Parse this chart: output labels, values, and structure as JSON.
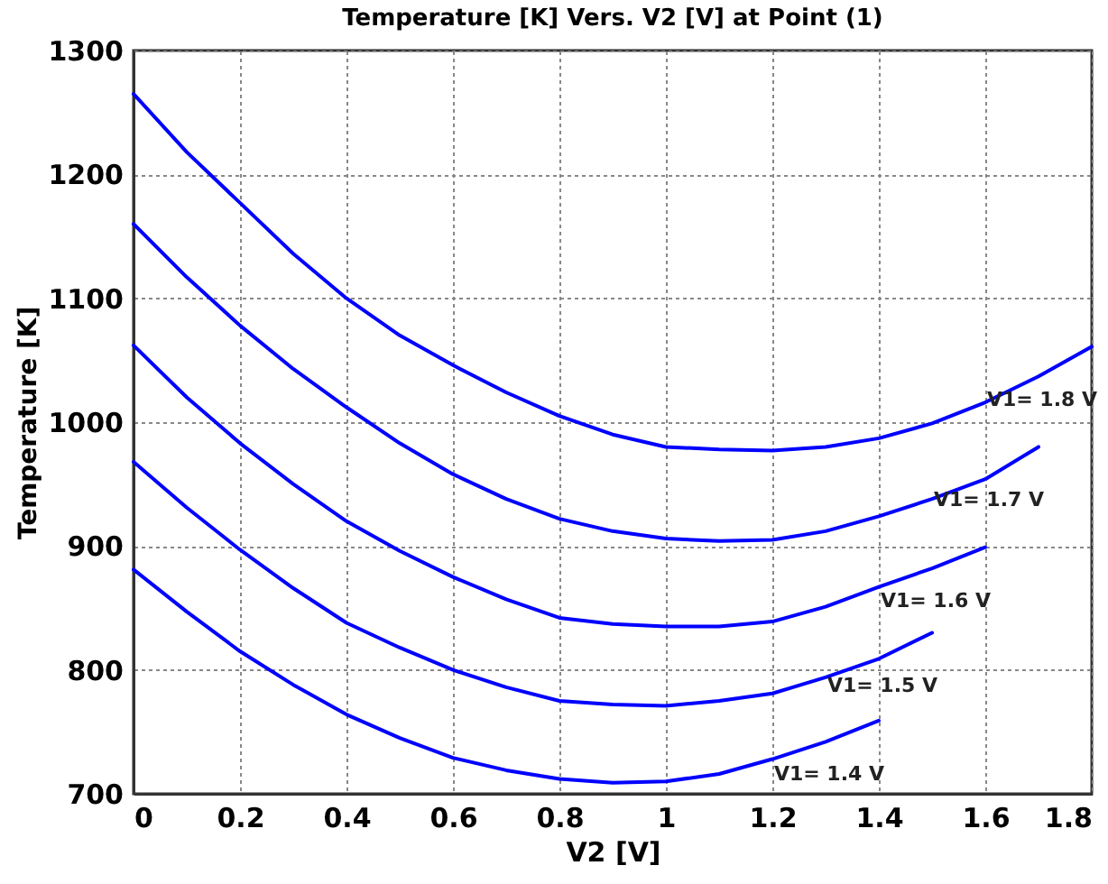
{
  "chart_data": {
    "type": "line",
    "title": "Temperature [K] Vers. V2  [V] at Point (1)",
    "xlabel": "V2 [V]",
    "ylabel": "Temperature [K]",
    "xlim": [
      0,
      1.8
    ],
    "xticks": [
      0,
      0.2,
      0.4,
      0.6,
      0.8,
      1,
      1.2,
      1.4,
      1.6,
      1.8
    ],
    "ylim": [
      700,
      1300
    ],
    "yticks": [
      700,
      800,
      900,
      1000,
      1100,
      1200,
      1300
    ],
    "grid": true,
    "line_style": "solid",
    "series": [
      {
        "name": "V1= 1.8 V",
        "color": "#0000ff",
        "x": [
          0,
          0.1,
          0.2,
          0.3,
          0.4,
          0.5,
          0.6,
          0.7,
          0.8,
          0.9,
          1,
          1.1,
          1.2,
          1.3,
          1.4,
          1.5,
          1.6,
          1.7,
          1.8
        ],
        "values": [
          1265,
          1218,
          1177,
          1136,
          1100,
          1070,
          1046,
          1024,
          1005,
          990,
          980,
          978,
          977,
          980,
          987,
          999,
          1016,
          1037,
          1061
        ]
      },
      {
        "name": "V1= 1.7 V",
        "color": "#0000ff",
        "x": [
          0,
          0.1,
          0.2,
          0.3,
          0.4,
          0.5,
          0.6,
          0.7,
          0.8,
          0.9,
          1,
          1.1,
          1.2,
          1.3,
          1.4,
          1.5,
          1.6,
          1.7
        ],
        "values": [
          1160,
          1117,
          1078,
          1043,
          1012,
          983,
          958,
          938,
          922,
          912,
          906,
          904,
          905,
          912,
          924,
          938,
          954,
          980
        ]
      },
      {
        "name": "V1= 1.6 V",
        "color": "#0000ff",
        "x": [
          0,
          0.1,
          0.2,
          0.3,
          0.4,
          0.5,
          0.6,
          0.7,
          0.8,
          0.9,
          1,
          1.1,
          1.2,
          1.3,
          1.4,
          1.5,
          1.6
        ],
        "values": [
          1062,
          1020,
          983,
          950,
          920,
          896,
          875,
          857,
          842,
          837,
          835,
          835,
          839,
          851,
          867,
          882,
          899
        ]
      },
      {
        "name": "V1= 1.5 V",
        "color": "#0000ff",
        "x": [
          0,
          0.1,
          0.2,
          0.3,
          0.4,
          0.5,
          0.6,
          0.7,
          0.8,
          0.9,
          1,
          1.1,
          1.2,
          1.3,
          1.4,
          1.5
        ],
        "values": [
          968,
          931,
          897,
          866,
          838,
          818,
          800,
          786,
          775,
          772,
          771,
          775,
          781,
          794,
          809,
          830
        ]
      },
      {
        "name": "V1= 1.4 V",
        "color": "#0000ff",
        "x": [
          0,
          0.1,
          0.2,
          0.3,
          0.4,
          0.5,
          0.6,
          0.7,
          0.8,
          0.9,
          1,
          1.1,
          1.2,
          1.3,
          1.4
        ],
        "values": [
          881,
          847,
          815,
          788,
          764,
          745,
          729,
          719,
          712,
          709,
          710,
          716,
          728,
          742,
          759
        ]
      }
    ]
  }
}
